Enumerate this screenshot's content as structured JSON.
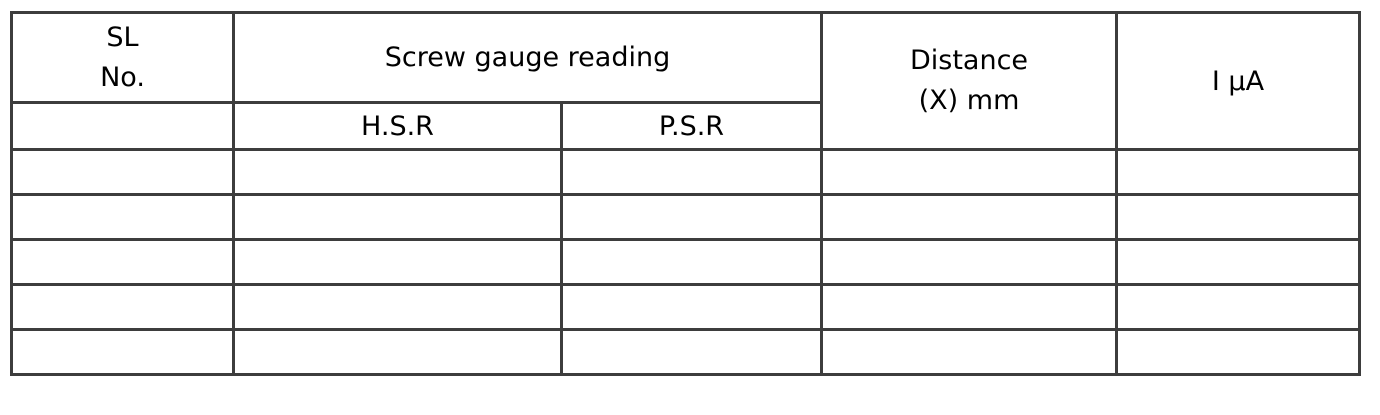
{
  "table": {
    "header": {
      "sl": {
        "line1": "SL",
        "line2": "No."
      },
      "screw_gauge": "Screw gauge reading",
      "hsr": "H.S.R",
      "psr": "P.S.R",
      "distance": {
        "line1": "Distance",
        "line2": "(X) mm"
      },
      "current": "I μA"
    },
    "rows": [
      [
        "",
        "",
        "",
        "",
        ""
      ],
      [
        "",
        "",
        "",
        "",
        ""
      ],
      [
        "",
        "",
        "",
        "",
        ""
      ],
      [
        "",
        "",
        "",
        "",
        ""
      ],
      [
        "",
        "",
        "",
        "",
        ""
      ]
    ]
  },
  "colors": {
    "border": "#3d3d3d",
    "text": "#000000",
    "background": "#ffffff"
  }
}
